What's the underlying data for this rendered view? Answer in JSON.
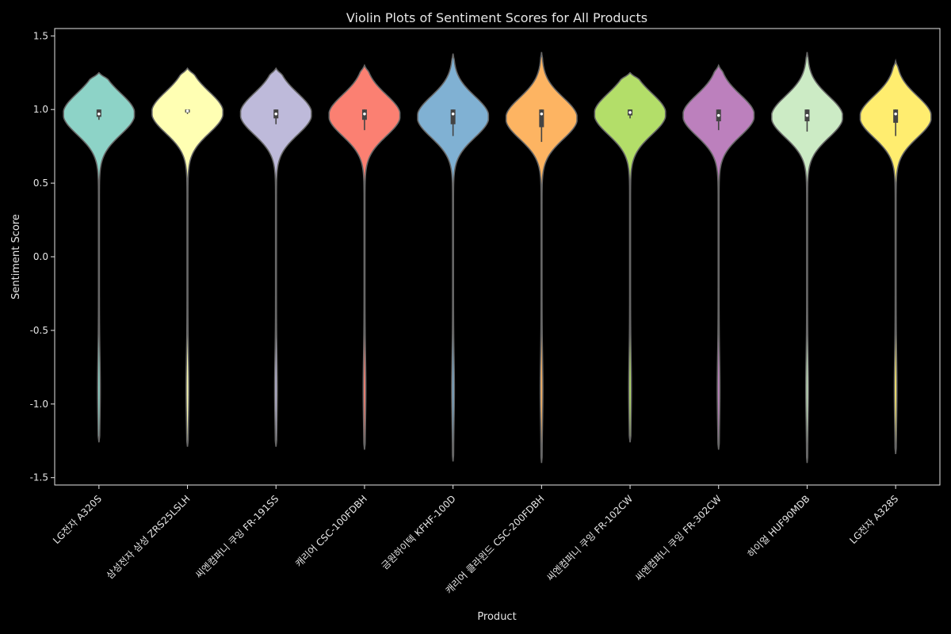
{
  "chart_data": {
    "type": "violin",
    "title": "Violin Plots of Sentiment Scores for All Products",
    "xlabel": "Product",
    "ylabel": "Sentiment Score",
    "ylim": [
      -1.55,
      1.55
    ],
    "yticks": [
      -1.5,
      -1.0,
      -0.5,
      0.0,
      0.5,
      1.0,
      1.5
    ],
    "ytick_labels": [
      "-1.5",
      "-1.0",
      "-0.5",
      "0.0",
      "0.5",
      "1.0",
      "1.5"
    ],
    "grid": false,
    "legend": "none",
    "categories": [
      "LG전자 A320S",
      "삼성전자 삼성 ZRS25LSLH",
      "씨엔컴퍼니 쿠잉 FR-191SS",
      "캐리어 CSC-100FDBH",
      "금원하이텍 KFHF-100D",
      "캐리어 클라윈드 CSC-200FDBH",
      "씨엔컴퍼니 쿠잉 FR-102CW",
      "씨엔컴퍼니 쿠잉 FR-302CW",
      "하이얼 HUF90MDB",
      "LG전자 A328S"
    ],
    "colors": [
      "#8dd3c7",
      "#ffffb3",
      "#bebada",
      "#fb8072",
      "#80b1d3",
      "#fdb462",
      "#b3de69",
      "#bc80bd",
      "#ccebc5",
      "#ffed6f"
    ],
    "violins": [
      {
        "min": -1.26,
        "max": 1.25,
        "median": 0.97,
        "q1": 0.95,
        "q3": 1.0,
        "whisker_low": 0.93,
        "whisker_high": 1.0,
        "peak": 0.97
      },
      {
        "min": -1.29,
        "max": 1.28,
        "median": 0.99,
        "q1": 0.98,
        "q3": 1.0,
        "whisker_low": 0.97,
        "whisker_high": 1.0,
        "peak": 0.98
      },
      {
        "min": -1.29,
        "max": 1.28,
        "median": 0.97,
        "q1": 0.94,
        "q3": 1.0,
        "whisker_low": 0.9,
        "whisker_high": 1.0,
        "peak": 0.97
      },
      {
        "min": -1.31,
        "max": 1.3,
        "median": 0.97,
        "q1": 0.93,
        "q3": 1.0,
        "whisker_low": 0.86,
        "whisker_high": 1.0,
        "peak": 0.96
      },
      {
        "min": -1.39,
        "max": 1.38,
        "median": 0.97,
        "q1": 0.9,
        "q3": 1.0,
        "whisker_low": 0.82,
        "whisker_high": 1.0,
        "peak": 0.95
      },
      {
        "min": -1.4,
        "max": 1.39,
        "median": 0.97,
        "q1": 0.88,
        "q3": 1.0,
        "whisker_low": 0.78,
        "whisker_high": 1.0,
        "peak": 0.94
      },
      {
        "min": -1.26,
        "max": 1.25,
        "median": 0.98,
        "q1": 0.96,
        "q3": 1.0,
        "whisker_low": 0.94,
        "whisker_high": 1.0,
        "peak": 0.97
      },
      {
        "min": -1.31,
        "max": 1.3,
        "median": 0.96,
        "q1": 0.92,
        "q3": 1.0,
        "whisker_low": 0.86,
        "whisker_high": 1.0,
        "peak": 0.96
      },
      {
        "min": -1.4,
        "max": 1.39,
        "median": 0.96,
        "q1": 0.92,
        "q3": 1.0,
        "whisker_low": 0.85,
        "whisker_high": 1.0,
        "peak": 0.95
      },
      {
        "min": -1.34,
        "max": 1.33,
        "median": 0.97,
        "q1": 0.91,
        "q3": 1.0,
        "whisker_low": 0.82,
        "whisker_high": 1.0,
        "peak": 0.95
      }
    ]
  }
}
